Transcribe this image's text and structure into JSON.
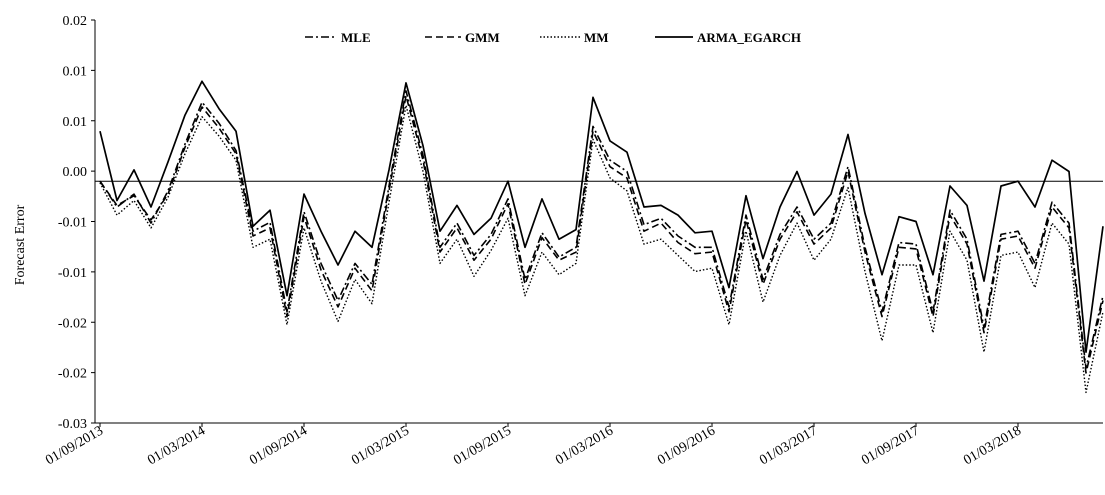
{
  "chart_data": {
    "type": "line",
    "ylabel": "Forecast Error",
    "y_ticks": [
      "0.02",
      "0.01",
      "0.01",
      "0.00",
      "-0.01",
      "-0.01",
      "-0.02",
      "-0.02",
      "-0.03"
    ],
    "ylim": [
      -0.03,
      0.02
    ],
    "x_tick_labels": [
      "01/09/2013",
      "01/03/2014",
      "01/09/2014",
      "01/03/2015",
      "01/09/2015",
      "01/03/2016",
      "01/09/2016",
      "01/03/2017",
      "01/09/2017",
      "01/03/2018"
    ],
    "x_tick_every": 6,
    "zero_line": true,
    "legend_position": "top",
    "series": [
      {
        "name": "MLE",
        "style": "dashdot",
        "values": [
          0.0,
          -0.0032,
          -0.0016,
          -0.0052,
          -0.0012,
          0.0046,
          0.0098,
          0.0072,
          0.0038,
          -0.0062,
          -0.0051,
          -0.0162,
          -0.0038,
          -0.0102,
          -0.0148,
          -0.0102,
          -0.0128,
          -0.0006,
          0.0112,
          0.0032,
          -0.0082,
          -0.0052,
          -0.0092,
          -0.0066,
          -0.0022,
          -0.0122,
          -0.0064,
          -0.0094,
          -0.0082,
          0.0068,
          0.0026,
          0.0012,
          -0.0054,
          -0.0046,
          -0.0068,
          -0.0082,
          -0.0082,
          -0.0156,
          -0.0042,
          -0.0122,
          -0.0066,
          -0.0032,
          -0.0072,
          -0.0052,
          0.0018,
          -0.0082,
          -0.0162,
          -0.0076,
          -0.0078,
          -0.0162,
          -0.0036,
          -0.0072,
          -0.0182,
          -0.0066,
          -0.0062,
          -0.0102,
          -0.0026,
          -0.0052,
          -0.0232,
          -0.0142
        ]
      },
      {
        "name": "GMM",
        "style": "dashed",
        "values": [
          0.0,
          -0.003,
          -0.0018,
          -0.0048,
          -0.0016,
          0.0042,
          0.0092,
          0.0066,
          0.0034,
          -0.0068,
          -0.0058,
          -0.0168,
          -0.0044,
          -0.011,
          -0.0156,
          -0.0108,
          -0.0136,
          -0.0012,
          0.0106,
          0.0026,
          -0.0088,
          -0.0058,
          -0.0098,
          -0.0072,
          -0.0028,
          -0.0128,
          -0.007,
          -0.0098,
          -0.0088,
          0.0062,
          0.0018,
          0.0004,
          -0.0062,
          -0.0052,
          -0.0076,
          -0.009,
          -0.0088,
          -0.0162,
          -0.0048,
          -0.0128,
          -0.0072,
          -0.0038,
          -0.0078,
          -0.0058,
          0.0012,
          -0.0088,
          -0.0168,
          -0.0082,
          -0.0084,
          -0.0168,
          -0.0042,
          -0.0078,
          -0.0188,
          -0.0072,
          -0.0068,
          -0.0108,
          -0.0032,
          -0.0058,
          -0.0238,
          -0.0148
        ]
      },
      {
        "name": "MM",
        "style": "dotted",
        "values": [
          -0.0002,
          -0.0042,
          -0.0024,
          -0.0058,
          -0.002,
          0.0034,
          0.008,
          0.0056,
          0.0026,
          -0.0082,
          -0.0072,
          -0.0178,
          -0.0058,
          -0.0124,
          -0.0174,
          -0.0122,
          -0.0152,
          -0.0026,
          0.0094,
          0.0012,
          -0.0102,
          -0.0072,
          -0.0118,
          -0.0086,
          -0.0046,
          -0.0142,
          -0.0088,
          -0.0116,
          -0.0102,
          0.0052,
          0.0004,
          -0.0012,
          -0.0078,
          -0.0072,
          -0.0092,
          -0.0112,
          -0.0108,
          -0.0178,
          -0.0062,
          -0.015,
          -0.0092,
          -0.0052,
          -0.0098,
          -0.0072,
          -0.0008,
          -0.0112,
          -0.0198,
          -0.0104,
          -0.0104,
          -0.0188,
          -0.0062,
          -0.0098,
          -0.0212,
          -0.0092,
          -0.0088,
          -0.0132,
          -0.0052,
          -0.0078,
          -0.0262,
          -0.0162
        ]
      },
      {
        "name": "ARMA_EGARCH",
        "style": "solid",
        "values": [
          0.0062,
          -0.0024,
          0.0014,
          -0.0032,
          0.0024,
          0.0082,
          0.0124,
          0.009,
          0.0062,
          -0.0056,
          -0.0036,
          -0.0142,
          -0.0016,
          -0.0062,
          -0.0104,
          -0.0062,
          -0.0082,
          0.0014,
          0.0122,
          0.0044,
          -0.0062,
          -0.003,
          -0.0066,
          -0.0046,
          0.0,
          -0.0082,
          -0.0022,
          -0.0072,
          -0.006,
          0.0104,
          0.005,
          0.0036,
          -0.0032,
          -0.003,
          -0.0042,
          -0.0064,
          -0.0062,
          -0.0132,
          -0.0018,
          -0.0096,
          -0.0032,
          0.0012,
          -0.0042,
          -0.0016,
          0.0058,
          -0.004,
          -0.0116,
          -0.0044,
          -0.005,
          -0.0116,
          -0.0006,
          -0.003,
          -0.0124,
          -0.0006,
          0.0,
          -0.0032,
          0.0026,
          0.0012,
          -0.0212,
          -0.0056
        ]
      }
    ]
  }
}
